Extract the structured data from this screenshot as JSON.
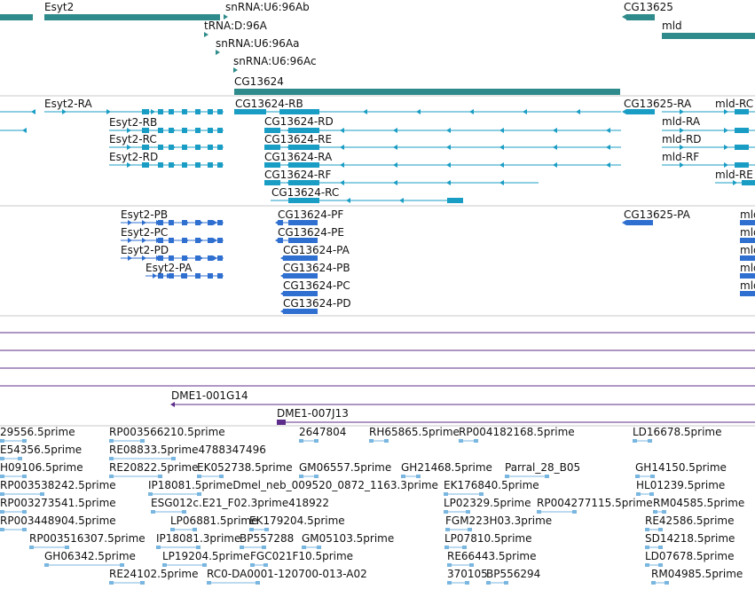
{
  "colors": {
    "gene": "#2f8b8b",
    "transcript": "#1a9dc4",
    "protein": "#2f6fd0",
    "alignment": "#5c2d8a",
    "cdna": "#79b6e0",
    "divider": "#c8c8c8",
    "label": "#111111"
  },
  "tracks": {
    "genes": [
      {
        "label": "",
        "strand": "+"
      },
      {
        "label": "Esyt2",
        "strand": "+"
      },
      {
        "label": "snRNA:U6:96Ab",
        "strand": "+"
      },
      {
        "label": "tRNA:D:96A",
        "strand": "+"
      },
      {
        "label": "snRNA:U6:96Aa",
        "strand": "+"
      },
      {
        "label": "snRNA:U6:96Ac",
        "strand": "+"
      },
      {
        "label": "CG13624",
        "strand": "-"
      },
      {
        "label": "CG13625",
        "strand": "-"
      },
      {
        "label": "mld",
        "strand": "+"
      }
    ],
    "transcripts": [
      {
        "label": "",
        "strand": "-"
      },
      {
        "label": "Esyt2-RA",
        "strand": "+"
      },
      {
        "label": "Esyt2-RB",
        "strand": "+"
      },
      {
        "label": "Esyt2-RC",
        "strand": "+"
      },
      {
        "label": "Esyt2-RD",
        "strand": "+"
      },
      {
        "label": "CG13624-RB",
        "strand": "-"
      },
      {
        "label": "CG13624-RD",
        "strand": "-"
      },
      {
        "label": "CG13624-RE",
        "strand": "-"
      },
      {
        "label": "CG13624-RA",
        "strand": "-"
      },
      {
        "label": "CG13624-RF",
        "strand": "-"
      },
      {
        "label": "CG13624-RC",
        "strand": "-"
      },
      {
        "label": "CG13625-RA",
        "strand": "-"
      },
      {
        "label": "mld-RC",
        "strand": "+"
      },
      {
        "label": "mld-RA",
        "strand": "+"
      },
      {
        "label": "mld-RD",
        "strand": "+"
      },
      {
        "label": "mld-RF",
        "strand": "+"
      },
      {
        "label": "mld-RE",
        "strand": "+"
      }
    ],
    "proteins": [
      {
        "label": "Esyt2-PB",
        "strand": "+"
      },
      {
        "label": "Esyt2-PC",
        "strand": "+"
      },
      {
        "label": "Esyt2-PD",
        "strand": "+"
      },
      {
        "label": "Esyt2-PA",
        "strand": "+"
      },
      {
        "label": "CG13624-PF",
        "strand": "-"
      },
      {
        "label": "CG13624-PE",
        "strand": "-"
      },
      {
        "label": "CG13624-PA",
        "strand": "-"
      },
      {
        "label": "CG13624-PB",
        "strand": "-"
      },
      {
        "label": "CG13624-PC",
        "strand": "-"
      },
      {
        "label": "CG13624-PD",
        "strand": "-"
      },
      {
        "label": "CG13625-PA",
        "strand": "-"
      },
      {
        "label": "mld",
        "strand": "+"
      },
      {
        "label": "mld",
        "strand": "+"
      },
      {
        "label": "mld",
        "strand": "+"
      },
      {
        "label": "mld",
        "strand": "+"
      },
      {
        "label": "mld",
        "strand": "+"
      }
    ],
    "alignments": [
      {
        "label": ""
      },
      {
        "label": ""
      },
      {
        "label": ""
      },
      {
        "label": ""
      },
      {
        "label": "DME1-001G14"
      },
      {
        "label": "DME1-007J13"
      }
    ],
    "cdnas": [
      "29556.5prime",
      "RP003566210.5prime",
      "2647804",
      "RH65865.5prime",
      "RP004182168.5prime",
      "LD16678.5prime",
      "E54356.5prime",
      "RE08833.5prime4788347496",
      "H09106.5prime",
      "RE20822.5prime",
      "EK052738.5prime",
      "GM06557.5prime",
      "GH21468.5prime",
      "Parral_28_B05",
      "GH14150.5prime",
      "RP003538242.5prime",
      "IP18081.5primeDmel_neb_009520_0872_1163.3prime",
      "EK176840.5prime",
      "HL01239.5prime",
      "RP003273541.5prime",
      "ESG012c.E21_F02.3prime418922",
      "LP02329.5prime",
      "RP004277115.5prime",
      "RM04585.5prime",
      "RP003448904.5prime",
      "LP06881.5prime",
      "EK179204.5prime",
      "FGM223H03.3prime",
      "RE42586.5prime",
      "RP003516307.5prime",
      "IP18081.3prime",
      "BP557288",
      "GM05103.5prime",
      "LP07810.5prime",
      "SD14218.5prime",
      "GH06342.5prime",
      "LP19204.5prime",
      "FGC021F10.5prime",
      "RE66443.5prime",
      "LD07678.5prime",
      "RE24102.5prime",
      "RC0-DA0001-120700-013-A02",
      "370105",
      "BP556294",
      "RM04985.5prime"
    ]
  }
}
